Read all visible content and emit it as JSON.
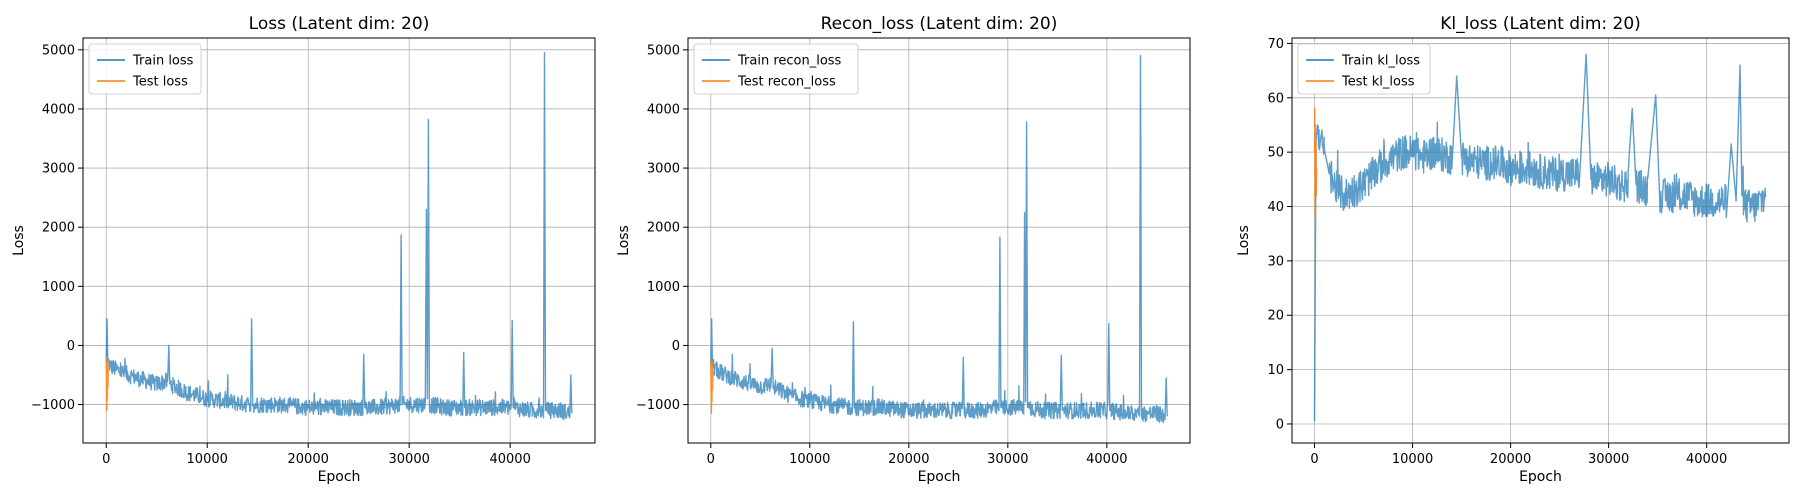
{
  "chart_data": [
    {
      "type": "line",
      "title": "Loss (Latent dim: 20)",
      "xlabel": "Epoch",
      "ylabel": "Loss",
      "xlim": [
        -2300,
        48400
      ],
      "ylim": [
        -1650,
        5200
      ],
      "xticks": [
        0,
        10000,
        20000,
        30000,
        40000
      ],
      "yticks": [
        -1000,
        0,
        1000,
        2000,
        3000,
        4000,
        5000
      ],
      "grid": true,
      "legend": "top-left",
      "series": [
        {
          "name": "Train loss",
          "color": "#1f77b4",
          "points": [
            [
              0,
              -300
            ],
            [
              80,
              450
            ],
            [
              160,
              -250
            ],
            [
              400,
              -350
            ],
            [
              1500,
              -450
            ],
            [
              3000,
              -550
            ],
            [
              5000,
              -650
            ],
            [
              6100,
              -600
            ],
            [
              6200,
              0
            ],
            [
              6300,
              -650
            ],
            [
              8000,
              -800
            ],
            [
              10000,
              -900
            ],
            [
              12000,
              -950
            ],
            [
              14300,
              -1000
            ],
            [
              14400,
              450
            ],
            [
              14500,
              -1000
            ],
            [
              17000,
              -1000
            ],
            [
              20000,
              -1050
            ],
            [
              22000,
              -1050
            ],
            [
              24000,
              -1050
            ],
            [
              25400,
              -1050
            ],
            [
              25500,
              -150
            ],
            [
              25600,
              -1050
            ],
            [
              27000,
              -1050
            ],
            [
              29100,
              -1000
            ],
            [
              29200,
              1870
            ],
            [
              29300,
              -1000
            ],
            [
              31600,
              -1000
            ],
            [
              31700,
              2300
            ],
            [
              31800,
              -900
            ],
            [
              31900,
              3820
            ],
            [
              32000,
              -1000
            ],
            [
              33500,
              -1050
            ],
            [
              35300,
              -1050
            ],
            [
              35400,
              -120
            ],
            [
              35500,
              -1050
            ],
            [
              37000,
              -1050
            ],
            [
              38500,
              -1050
            ],
            [
              40100,
              -1050
            ],
            [
              40200,
              420
            ],
            [
              40300,
              -1050
            ],
            [
              42000,
              -1100
            ],
            [
              43300,
              -1100
            ],
            [
              43400,
              4950
            ],
            [
              43500,
              -1100
            ],
            [
              45000,
              -1100
            ],
            [
              45900,
              -1150
            ],
            [
              46000,
              -500
            ],
            [
              46100,
              -1150
            ]
          ]
        },
        {
          "name": "Test loss",
          "color": "#ff7f0e",
          "points": [
            [
              0,
              -200
            ],
            [
              30,
              -600
            ],
            [
              60,
              -1100
            ],
            [
              90,
              -350
            ],
            [
              120,
              -900
            ],
            [
              150,
              -250
            ],
            [
              180,
              -700
            ],
            [
              210,
              -400
            ]
          ]
        }
      ]
    },
    {
      "type": "line",
      "title": "Recon_loss (Latent dim: 20)",
      "xlabel": "Epoch",
      "ylabel": "Loss",
      "xlim": [
        -2300,
        48400
      ],
      "ylim": [
        -1650,
        5200
      ],
      "xticks": [
        0,
        10000,
        20000,
        30000,
        40000
      ],
      "yticks": [
        -1000,
        0,
        1000,
        2000,
        3000,
        4000,
        5000
      ],
      "grid": true,
      "legend": "top-left",
      "series": [
        {
          "name": "Train recon_loss",
          "color": "#1f77b4",
          "points": [
            [
              0,
              -350
            ],
            [
              80,
              450
            ],
            [
              160,
              -300
            ],
            [
              400,
              -400
            ],
            [
              1500,
              -500
            ],
            [
              3000,
              -600
            ],
            [
              5000,
              -700
            ],
            [
              6100,
              -650
            ],
            [
              6200,
              -50
            ],
            [
              6300,
              -700
            ],
            [
              8000,
              -850
            ],
            [
              10000,
              -950
            ],
            [
              12000,
              -1000
            ],
            [
              14300,
              -1050
            ],
            [
              14400,
              400
            ],
            [
              14500,
              -1050
            ],
            [
              17000,
              -1050
            ],
            [
              20000,
              -1100
            ],
            [
              22000,
              -1100
            ],
            [
              24000,
              -1100
            ],
            [
              25400,
              -1100
            ],
            [
              25500,
              -200
            ],
            [
              25600,
              -1100
            ],
            [
              27000,
              -1100
            ],
            [
              29100,
              -1050
            ],
            [
              29200,
              1830
            ],
            [
              29300,
              -1050
            ],
            [
              31600,
              -1050
            ],
            [
              31700,
              2250
            ],
            [
              31800,
              -950
            ],
            [
              31900,
              3780
            ],
            [
              32000,
              -1050
            ],
            [
              33500,
              -1100
            ],
            [
              35300,
              -1100
            ],
            [
              35400,
              -170
            ],
            [
              35500,
              -1100
            ],
            [
              37000,
              -1100
            ],
            [
              38500,
              -1100
            ],
            [
              40100,
              -1100
            ],
            [
              40200,
              370
            ],
            [
              40300,
              -1100
            ],
            [
              42000,
              -1150
            ],
            [
              43300,
              -1150
            ],
            [
              43400,
              4900
            ],
            [
              43500,
              -1150
            ],
            [
              45000,
              -1150
            ],
            [
              45900,
              -1200
            ],
            [
              46000,
              -550
            ],
            [
              46100,
              -1200
            ]
          ]
        },
        {
          "name": "Test recon_loss",
          "color": "#ff7f0e",
          "points": [
            [
              0,
              -250
            ],
            [
              30,
              -650
            ],
            [
              60,
              -1150
            ],
            [
              90,
              -400
            ],
            [
              120,
              -950
            ],
            [
              150,
              -300
            ],
            [
              180,
              -750
            ],
            [
              210,
              -450
            ]
          ]
        }
      ]
    },
    {
      "type": "line",
      "title": "Kl_loss (Latent dim: 20)",
      "xlabel": "Epoch",
      "ylabel": "Loss",
      "xlim": [
        -2300,
        48400
      ],
      "ylim": [
        -3.5,
        71
      ],
      "xticks": [
        0,
        10000,
        20000,
        30000,
        40000
      ],
      "yticks": [
        0,
        10,
        20,
        30,
        40,
        50,
        60,
        70
      ],
      "grid": true,
      "legend": "top-left",
      "series": [
        {
          "name": "Train kl_loss",
          "color": "#1f77b4",
          "points": [
            [
              0,
              0.5
            ],
            [
              50,
              16
            ],
            [
              100,
              35
            ],
            [
              150,
              52
            ],
            [
              300,
              55
            ],
            [
              600,
              52
            ],
            [
              1000,
              50
            ],
            [
              1500,
              46
            ],
            [
              2000,
              44
            ],
            [
              3000,
              42
            ],
            [
              4000,
              43
            ],
            [
              5000,
              44
            ],
            [
              6000,
              46
            ],
            [
              7000,
              48
            ],
            [
              8000,
              49
            ],
            [
              9000,
              50
            ],
            [
              10000,
              50
            ],
            [
              11000,
              49
            ],
            [
              12000,
              50
            ],
            [
              14000,
              49
            ],
            [
              14500,
              64
            ],
            [
              15000,
              49
            ],
            [
              17000,
              48
            ],
            [
              19000,
              48
            ],
            [
              20000,
              47
            ],
            [
              22000,
              47
            ],
            [
              24000,
              46
            ],
            [
              26000,
              46
            ],
            [
              27000,
              46
            ],
            [
              27700,
              68
            ],
            [
              28200,
              45
            ],
            [
              30000,
              45
            ],
            [
              31000,
              44
            ],
            [
              32000,
              44
            ],
            [
              32400,
              58
            ],
            [
              32800,
              44
            ],
            [
              34000,
              43
            ],
            [
              34800,
              60.5
            ],
            [
              35200,
              42
            ],
            [
              37000,
              42
            ],
            [
              38000,
              42
            ],
            [
              39000,
              41
            ],
            [
              40000,
              41
            ],
            [
              41000,
              41
            ],
            [
              42000,
              41
            ],
            [
              42500,
              51.5
            ],
            [
              43000,
              41
            ],
            [
              43400,
              66
            ],
            [
              43600,
              42
            ],
            [
              44000,
              40
            ],
            [
              45000,
              40
            ],
            [
              46000,
              42
            ]
          ]
        },
        {
          "name": "Test kl_loss",
          "color": "#ff7f0e",
          "points": [
            [
              0,
              50
            ],
            [
              30,
              58
            ],
            [
              60,
              38.5
            ],
            [
              90,
              55
            ],
            [
              120,
              45
            ],
            [
              150,
              52
            ],
            [
              180,
              42
            ],
            [
              210,
              47
            ]
          ]
        }
      ]
    }
  ]
}
